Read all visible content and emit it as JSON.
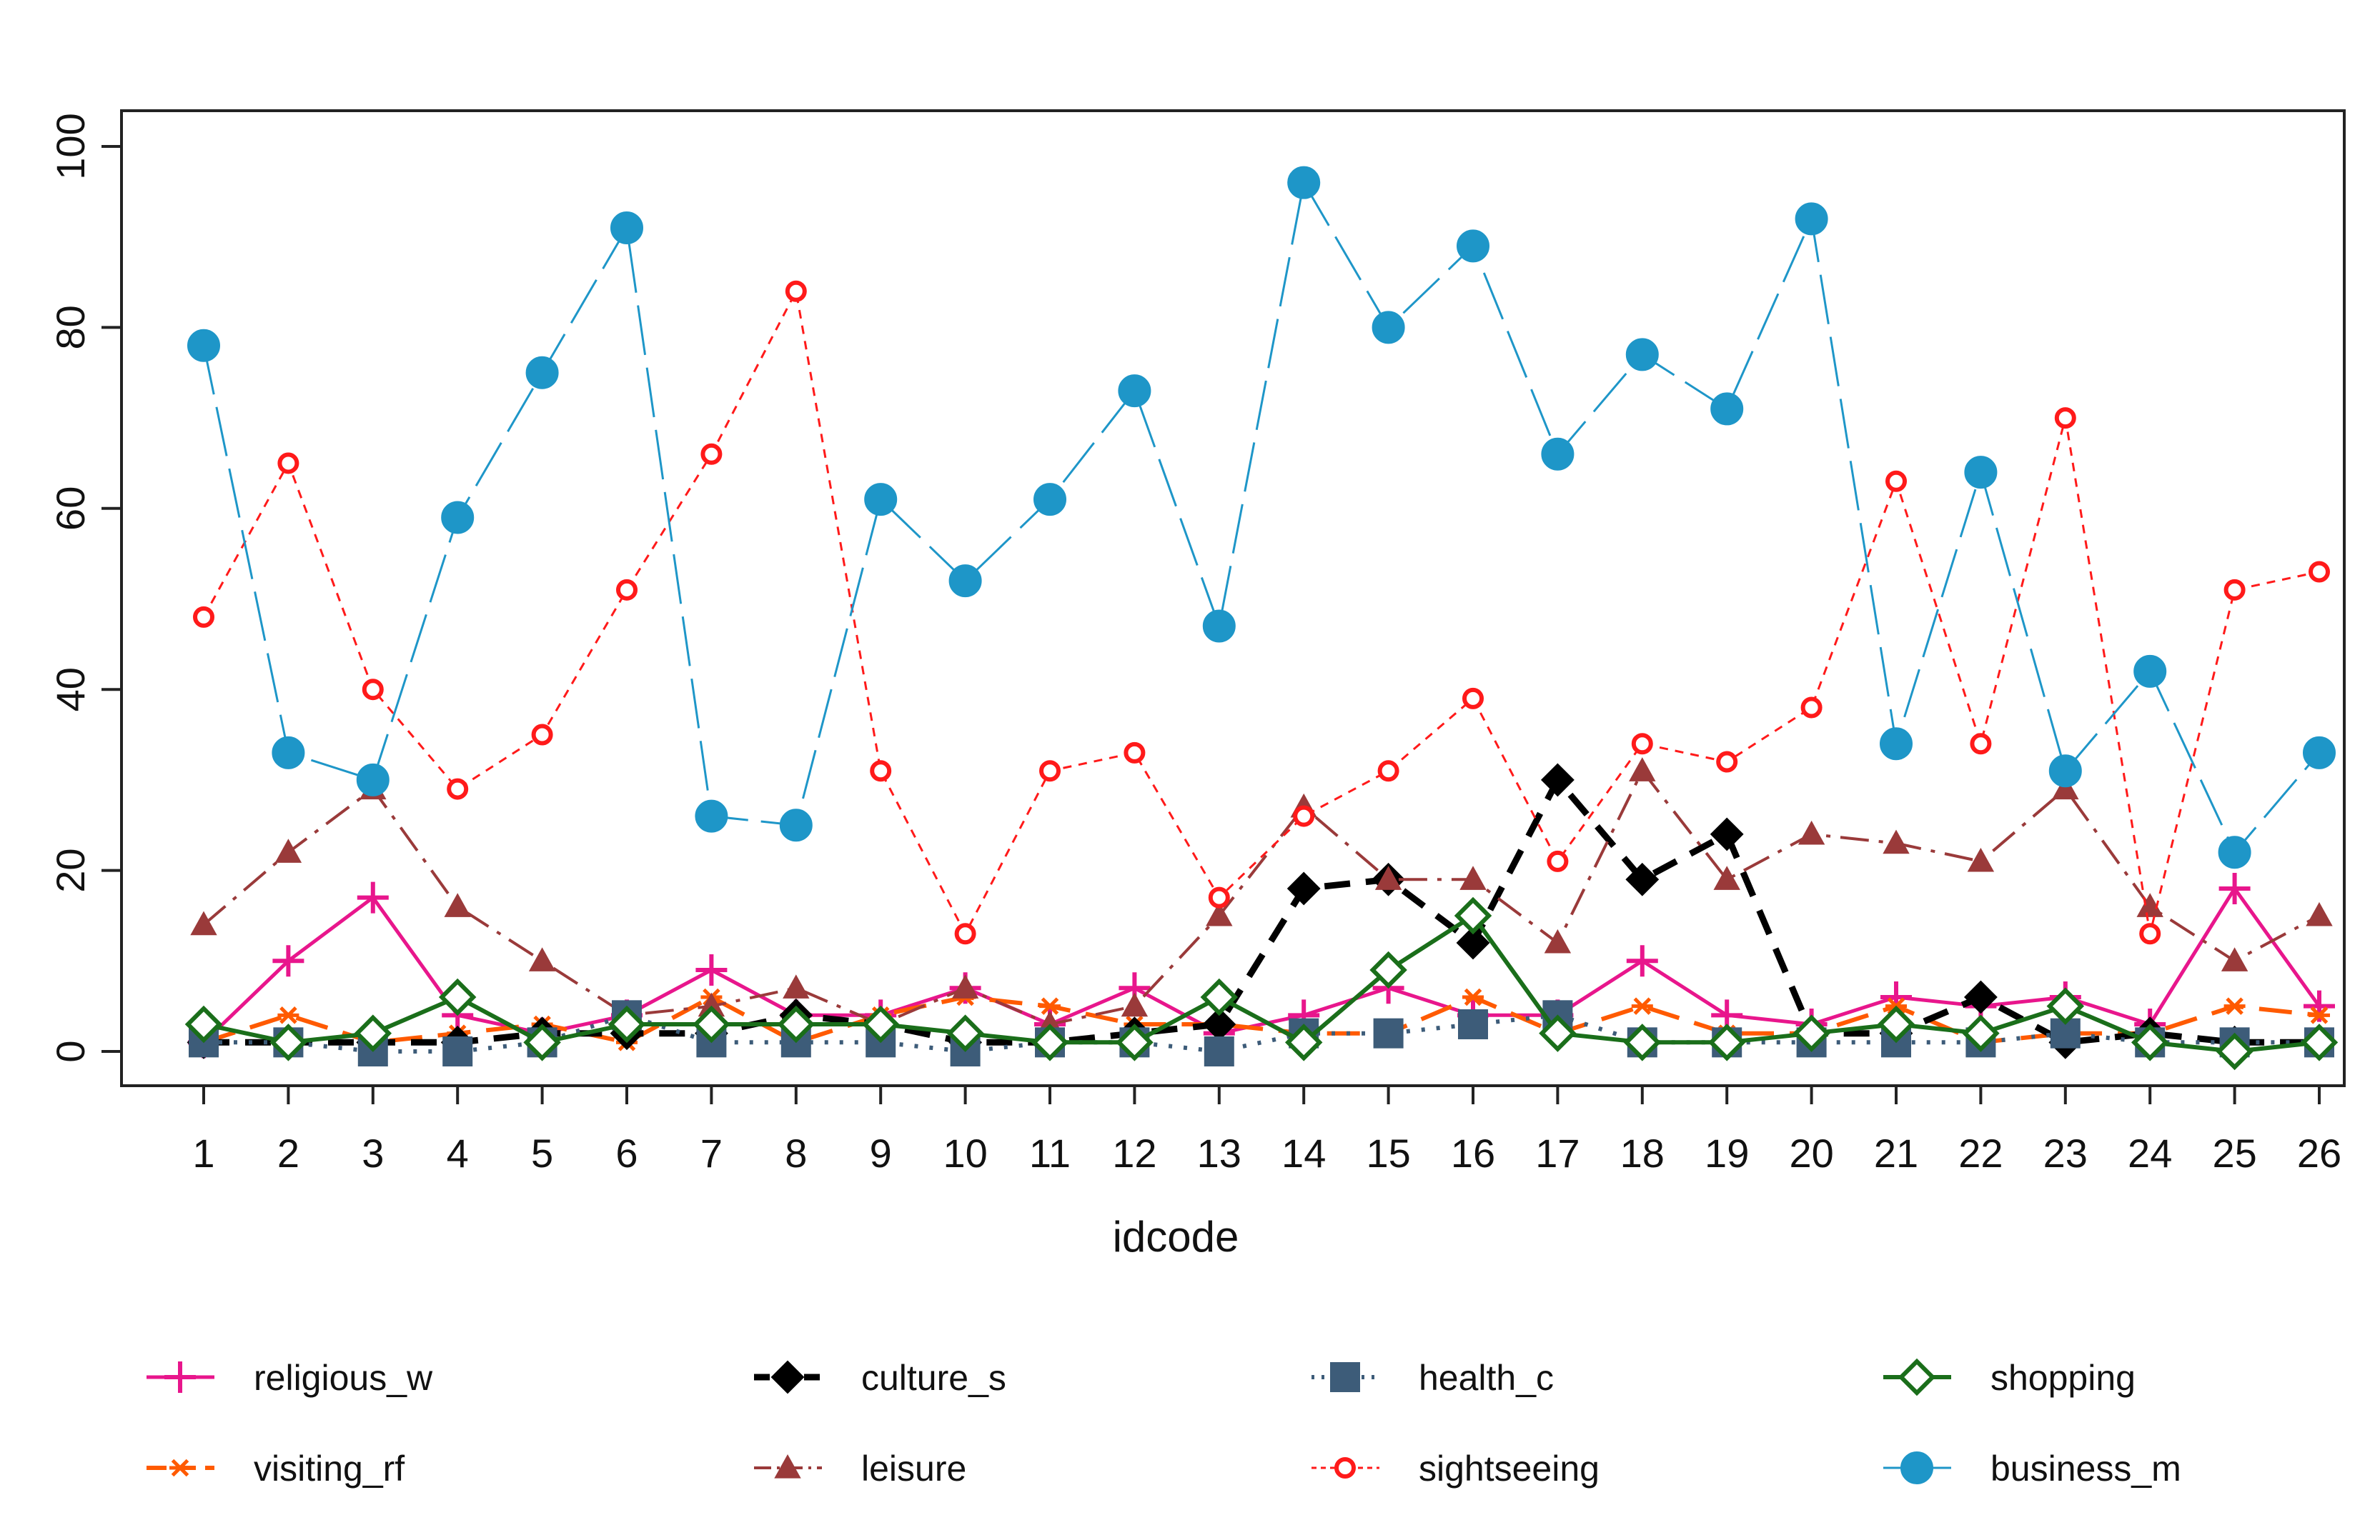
{
  "chart_data": {
    "type": "line",
    "xlabel": "idcode",
    "ylabel": "",
    "ylim": [
      0,
      100
    ],
    "yticks": [
      0,
      20,
      40,
      60,
      80,
      100
    ],
    "x": [
      1,
      2,
      3,
      4,
      5,
      6,
      7,
      8,
      9,
      10,
      11,
      12,
      13,
      14,
      15,
      16,
      17,
      18,
      19,
      20,
      21,
      22,
      23,
      24,
      25,
      26
    ],
    "x_tick_labels": [
      "1",
      "2",
      "3",
      "4",
      "5",
      "6",
      "7",
      "8",
      "9",
      "10",
      "11",
      "12",
      "13",
      "14",
      "15",
      "16",
      "17",
      "18",
      "19",
      "20",
      "21",
      "22",
      "23",
      "24",
      "25",
      "26"
    ],
    "y_tick_labels": [
      "0",
      "20",
      "40",
      "60",
      "80",
      "100"
    ],
    "legend_position": "bottom",
    "series": [
      {
        "name": "religious_w",
        "color": "#e8168c",
        "dash": "solid",
        "marker": "plus",
        "values": [
          1,
          10,
          17,
          4,
          2,
          4,
          9,
          4,
          4,
          7,
          3,
          7,
          2,
          4,
          7,
          4,
          4,
          10,
          4,
          3,
          6,
          5,
          6,
          3,
          18,
          5
        ]
      },
      {
        "name": "visiting_rf",
        "color": "#ff5a00",
        "dash": "longdash",
        "marker": "asterisk",
        "values": [
          1,
          4,
          1,
          2,
          3,
          1,
          6,
          1,
          4,
          6,
          5,
          3,
          3,
          2,
          2,
          6,
          2,
          5,
          2,
          2,
          5,
          1,
          2,
          2,
          5,
          4
        ]
      },
      {
        "name": "culture_s",
        "color": "#000000",
        "dash": "dashed-bold",
        "marker": "diamond",
        "values": [
          1,
          1,
          1,
          1,
          2,
          2,
          2,
          4,
          3,
          1,
          1,
          2,
          3,
          18,
          19,
          12,
          30,
          19,
          24,
          2,
          2,
          6,
          1,
          2,
          1,
          1
        ]
      },
      {
        "name": "leisure",
        "color": "#9a3a3a",
        "dash": "dashdot",
        "marker": "triangle",
        "values": [
          14,
          22,
          29,
          16,
          10,
          4,
          5,
          7,
          3,
          7,
          3,
          5,
          15,
          27,
          19,
          19,
          12,
          31,
          19,
          24,
          23,
          21,
          29,
          16,
          10,
          15
        ]
      },
      {
        "name": "health_c",
        "color": "#3d5c79",
        "dash": "dotted",
        "marker": "square",
        "values": [
          1,
          1,
          0,
          0,
          1,
          4,
          1,
          1,
          1,
          0,
          1,
          1,
          0,
          2,
          2,
          3,
          4,
          1,
          1,
          1,
          1,
          1,
          2,
          1,
          1,
          1
        ]
      },
      {
        "name": "sightseeing",
        "color": "#ff1a1a",
        "dash": "shortdash",
        "marker": "circle-open",
        "values": [
          48,
          65,
          40,
          29,
          35,
          51,
          66,
          84,
          31,
          13,
          31,
          33,
          17,
          26,
          31,
          39,
          21,
          34,
          32,
          38,
          63,
          34,
          70,
          13,
          51,
          53
        ]
      },
      {
        "name": "shopping",
        "color": "#1a6e1a",
        "dash": "solid-bold",
        "marker": "diamond-open",
        "values": [
          3,
          1,
          2,
          6,
          1,
          3,
          3,
          3,
          3,
          2,
          1,
          1,
          6,
          1,
          9,
          15,
          2,
          1,
          1,
          2,
          3,
          2,
          5,
          1,
          0,
          1
        ]
      },
      {
        "name": "business_m",
        "color": "#1e96c8",
        "dash": "longdash-fine",
        "marker": "circle-filled",
        "values": [
          78,
          33,
          30,
          59,
          75,
          91,
          26,
          25,
          61,
          52,
          61,
          73,
          47,
          96,
          80,
          89,
          66,
          77,
          71,
          92,
          34,
          64,
          31,
          42,
          22,
          33
        ]
      }
    ]
  }
}
